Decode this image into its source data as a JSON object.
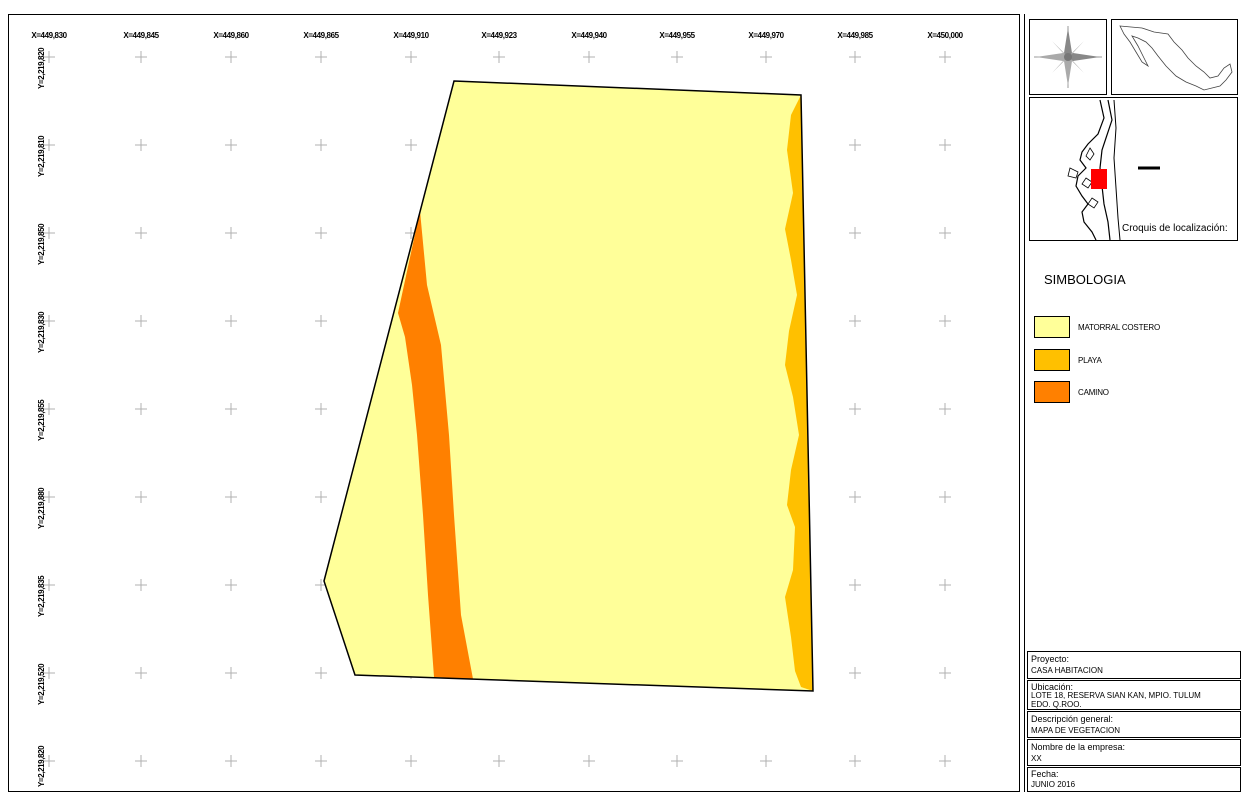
{
  "map": {
    "x_labels": [
      "X=449,830",
      "X=449,845",
      "X=449,860",
      "X=449,865",
      "X=449,910",
      "X=449,923",
      "X=449,940",
      "X=449,955",
      "X=449,970",
      "X=449,985",
      "X=450,000"
    ],
    "y_labels": [
      "Y=2,219,820",
      "Y=2,219,810",
      "Y=2,219,850",
      "Y=2,219,830",
      "Y=2,219,855",
      "Y=2,219,880",
      "Y=2,219,835",
      "Y=2,219,520",
      "Y=2,219,820"
    ]
  },
  "colors": {
    "matorral": "#ffff99",
    "playa": "#ffc000",
    "camino": "#ff8000",
    "location_marker": "#ff0000",
    "grid_cross": "#b0b0b0"
  },
  "locator": {
    "caption": "Croquis de localización:"
  },
  "legend": {
    "title": "SIMBOLOGIA",
    "items": [
      {
        "label": "MATORRAL COSTERO",
        "color": "#ffff99"
      },
      {
        "label": "PLAYA",
        "color": "#ffc000"
      },
      {
        "label": "CAMINO",
        "color": "#ff8000"
      }
    ]
  },
  "title_block": {
    "proyecto_label": "Proyecto:",
    "proyecto_value": "CASA HABITACION",
    "ubicacion_label": "Ubicación:",
    "ubicacion_value_1": "LOTE 18, RESERVA SIAN KAN, MPIO. TULUM",
    "ubicacion_value_2": "EDO. Q.ROO.",
    "descripcion_label": "Descripción general:",
    "descripcion_value": "MAPA DE VEGETACION",
    "empresa_label": "Nombre de la empresa:",
    "empresa_value": "XX",
    "fecha_label": "Fecha:",
    "fecha_value": "JUNIO 2016"
  }
}
